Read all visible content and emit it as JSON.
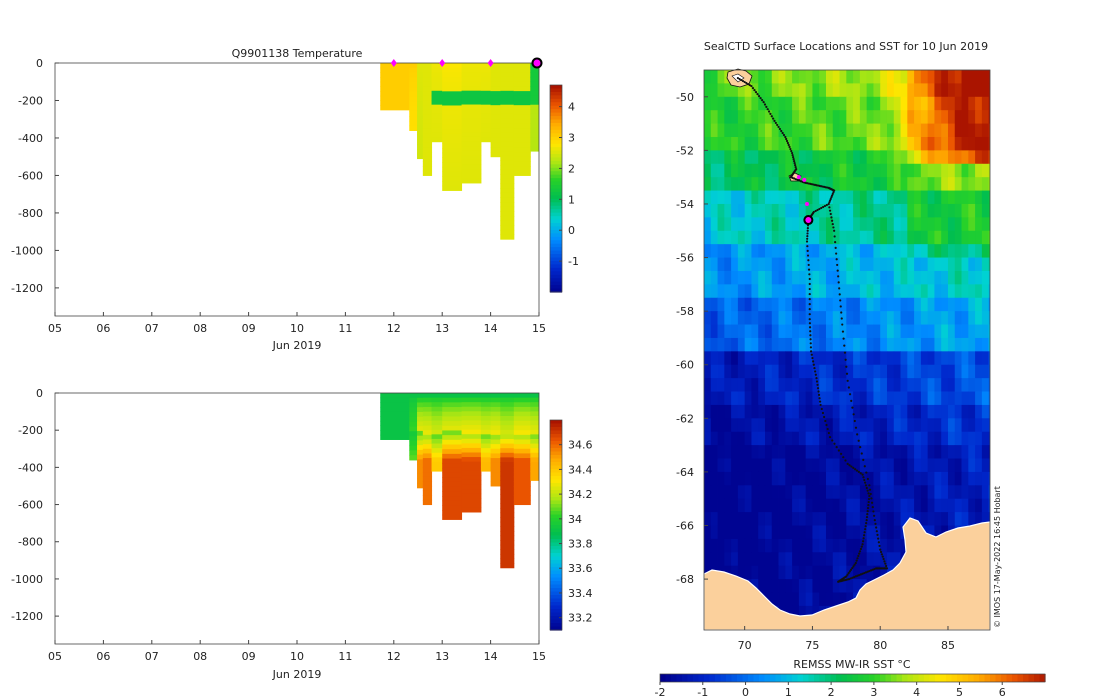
{
  "colors": {
    "ocean_cold": "#0a1a8c",
    "land": "#fbd09c",
    "track": "#111111",
    "profile_marker": "#ff00ff",
    "current_marker": "#ff00ff"
  },
  "chart_data": [
    {
      "type": "heatmap",
      "id": "temperature",
      "title": "Q9901138  Temperature",
      "xlabel": "Jun 2019",
      "ylabel": "",
      "xlim": [
        5,
        15
      ],
      "ylim": [
        -1350,
        0
      ],
      "x_ticks": [
        "05",
        "06",
        "07",
        "08",
        "09",
        "10",
        "11",
        "12",
        "13",
        "14",
        "15"
      ],
      "y_ticks": [
        0,
        -200,
        -400,
        -600,
        -800,
        -1000,
        -1200
      ],
      "colorbar": {
        "min": -2,
        "max": 4.7,
        "ticks": [
          -1,
          0,
          1,
          2,
          3,
          4
        ]
      },
      "profile_markers_x": [
        12,
        13,
        14,
        15
      ],
      "columns": [
        {
          "x0": 11.72,
          "x1": 12.32,
          "depth": 250,
          "surface": 3.1,
          "deep": 3.1
        },
        {
          "x0": 12.32,
          "x1": 12.48,
          "depth": 360,
          "surface": 3.1,
          "deep": 2.9
        },
        {
          "x0": 12.48,
          "x1": 12.6,
          "depth": 510,
          "surface": 2.6,
          "deep": 2.5
        },
        {
          "x0": 12.6,
          "x1": 12.78,
          "depth": 600,
          "surface": 2.6,
          "deep": 2.6
        },
        {
          "x0": 12.78,
          "x1": 13.0,
          "depth": 420,
          "surface": 2.7,
          "deep": 2.6
        },
        {
          "x0": 13.0,
          "x1": 13.4,
          "depth": 680,
          "surface": 2.8,
          "deep": 2.6
        },
        {
          "x0": 13.4,
          "x1": 13.8,
          "depth": 640,
          "surface": 2.7,
          "deep": 2.6
        },
        {
          "x0": 13.8,
          "x1": 14.0,
          "depth": 420,
          "surface": 2.7,
          "deep": 2.6
        },
        {
          "x0": 14.0,
          "x1": 14.2,
          "depth": 500,
          "surface": 2.6,
          "deep": 2.6
        },
        {
          "x0": 14.2,
          "x1": 14.48,
          "depth": 940,
          "surface": 2.6,
          "deep": 2.6
        },
        {
          "x0": 14.48,
          "x1": 14.82,
          "depth": 600,
          "surface": 2.6,
          "deep": 2.6
        },
        {
          "x0": 14.82,
          "x1": 15.0,
          "depth": 470,
          "surface": 2.4,
          "deep": 2.3
        }
      ]
    },
    {
      "type": "heatmap",
      "id": "salinity",
      "title": "",
      "xlabel": "Jun 2019",
      "ylabel": "",
      "xlim": [
        5,
        15
      ],
      "ylim": [
        -1350,
        0
      ],
      "x_ticks": [
        "05",
        "06",
        "07",
        "08",
        "09",
        "10",
        "11",
        "12",
        "13",
        "14",
        "15"
      ],
      "y_ticks": [
        0,
        -200,
        -400,
        -600,
        -800,
        -1000,
        -1200
      ],
      "colorbar": {
        "min": 33.1,
        "max": 34.8,
        "ticks": [
          33.2,
          33.4,
          33.6,
          33.8,
          34,
          34.2,
          34.4,
          34.6
        ]
      },
      "columns": [
        {
          "x0": 11.72,
          "x1": 12.32,
          "depth": 250,
          "surface": 33.92,
          "deep": 33.92
        },
        {
          "x0": 12.32,
          "x1": 12.48,
          "depth": 360,
          "surface": 33.92,
          "deep": 34.1
        },
        {
          "x0": 12.48,
          "x1": 12.6,
          "depth": 510,
          "surface": 33.92,
          "deep": 34.55
        },
        {
          "x0": 12.6,
          "x1": 12.78,
          "depth": 600,
          "surface": 33.92,
          "deep": 34.6
        },
        {
          "x0": 12.78,
          "x1": 13.0,
          "depth": 420,
          "surface": 33.92,
          "deep": 34.4
        },
        {
          "x0": 13.0,
          "x1": 13.4,
          "depth": 680,
          "surface": 33.92,
          "deep": 34.68
        },
        {
          "x0": 13.4,
          "x1": 13.8,
          "depth": 640,
          "surface": 33.92,
          "deep": 34.68
        },
        {
          "x0": 13.8,
          "x1": 14.0,
          "depth": 420,
          "surface": 33.92,
          "deep": 34.45
        },
        {
          "x0": 14.0,
          "x1": 14.2,
          "depth": 500,
          "surface": 33.92,
          "deep": 34.55
        },
        {
          "x0": 14.2,
          "x1": 14.48,
          "depth": 940,
          "surface": 33.92,
          "deep": 34.72
        },
        {
          "x0": 14.48,
          "x1": 14.82,
          "depth": 600,
          "surface": 33.92,
          "deep": 34.65
        },
        {
          "x0": 14.82,
          "x1": 15.0,
          "depth": 470,
          "surface": 33.92,
          "deep": 34.5
        }
      ]
    },
    {
      "type": "heatmap",
      "id": "sst_map",
      "title": "SealCTD Surface Locations and SST for 10 Jun 2019",
      "xlabel": "",
      "ylabel": "",
      "xlim": [
        67,
        88.1
      ],
      "ylim": [
        -69.9,
        -49
      ],
      "x_ticks": [
        70,
        75,
        80,
        85
      ],
      "y_ticks": [
        -50,
        -52,
        -54,
        -56,
        -58,
        -60,
        -62,
        -64,
        -66,
        -68
      ],
      "colorbar": {
        "label": "REMSS MW-IR SST °C",
        "min": -2,
        "max": 7,
        "ticks": [
          -2,
          -1,
          0,
          1,
          2,
          3,
          4,
          5,
          6
        ]
      },
      "side_label": "© IMOS 17-May-2022 16:45 Hobart",
      "current_position": {
        "lon": 74.7,
        "lat": -54.6
      },
      "recent_positions": [
        {
          "lon": 74.0,
          "lat": -53.0
        },
        {
          "lon": 74.4,
          "lat": -53.1
        },
        {
          "lon": 74.6,
          "lat": -54.0
        }
      ],
      "track": [
        {
          "lon": 69.5,
          "lat": -49.3
        },
        {
          "lon": 70.5,
          "lat": -49.6
        },
        {
          "lon": 71.4,
          "lat": -50.2
        },
        {
          "lon": 72.2,
          "lat": -50.9
        },
        {
          "lon": 73.0,
          "lat": -51.5
        },
        {
          "lon": 73.5,
          "lat": -52.1
        },
        {
          "lon": 73.8,
          "lat": -52.7
        },
        {
          "lon": 73.4,
          "lat": -53.0
        },
        {
          "lon": 74.4,
          "lat": -53.2
        },
        {
          "lon": 75.3,
          "lat": -53.3
        },
        {
          "lon": 76.2,
          "lat": -53.4
        },
        {
          "lon": 76.6,
          "lat": -53.5
        },
        {
          "lon": 76.2,
          "lat": -54.0
        },
        {
          "lon": 75.1,
          "lat": -54.3
        },
        {
          "lon": 74.7,
          "lat": -54.6
        },
        {
          "lon": 74.6,
          "lat": -55.4
        },
        {
          "lon": 74.8,
          "lat": -56.8
        },
        {
          "lon": 74.8,
          "lat": -58.3
        },
        {
          "lon": 74.9,
          "lat": -59.5
        },
        {
          "lon": 75.3,
          "lat": -60.5
        },
        {
          "lon": 75.6,
          "lat": -61.5
        },
        {
          "lon": 76.3,
          "lat": -62.7
        },
        {
          "lon": 77.6,
          "lat": -63.7
        },
        {
          "lon": 78.7,
          "lat": -64.1
        },
        {
          "lon": 79.2,
          "lat": -64.9
        },
        {
          "lon": 79.0,
          "lat": -65.8
        },
        {
          "lon": 78.7,
          "lat": -66.7
        },
        {
          "lon": 78.2,
          "lat": -67.4
        },
        {
          "lon": 77.5,
          "lat": -67.9
        },
        {
          "lon": 76.9,
          "lat": -68.1
        },
        {
          "lon": 77.7,
          "lat": -68.0
        },
        {
          "lon": 78.7,
          "lat": -67.8
        },
        {
          "lon": 79.7,
          "lat": -67.6
        },
        {
          "lon": 80.5,
          "lat": -67.6
        },
        {
          "lon": 80.0,
          "lat": -66.9
        },
        {
          "lon": 79.6,
          "lat": -65.8
        },
        {
          "lon": 79.2,
          "lat": -64.5
        },
        {
          "lon": 78.3,
          "lat": -62.6
        },
        {
          "lon": 77.6,
          "lat": -60.6
        },
        {
          "lon": 77.2,
          "lat": -58.5
        },
        {
          "lon": 76.9,
          "lat": -56.7
        },
        {
          "lon": 76.6,
          "lat": -55.0
        },
        {
          "lon": 76.2,
          "lat": -54.0
        }
      ]
    }
  ]
}
